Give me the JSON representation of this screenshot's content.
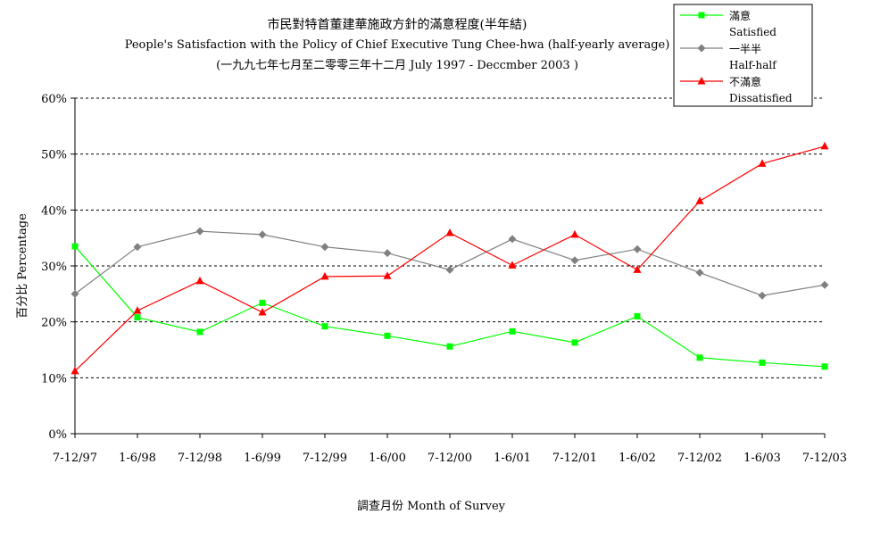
{
  "chart_data": {
    "type": "line",
    "title": "市民對特首董建華施政方針的滿意程度(半年結)",
    "subtitle_en": "People's Satisfaction with the Policy of Chief Executive Tung Chee-hwa (half-yearly average)",
    "subtitle_period": "(一九九七年七月至二零零三年十二月 July 1997 - Deccmber 2003 )",
    "xlabel": "調查月份 Month of Survey",
    "ylabel": "百分比 Percentage",
    "categories": [
      "7-12/97",
      "1-6/98",
      "7-12/98",
      "1-6/99",
      "7-12/99",
      "1-6/00",
      "7-12/00",
      "1-6/01",
      "7-12/01",
      "1-6/02",
      "7-12/02",
      "1-6/03",
      "7-12/03"
    ],
    "ylim": [
      0,
      60
    ],
    "yticks": [
      "0%",
      "10%",
      "20%",
      "30%",
      "40%",
      "50%",
      "60%"
    ],
    "grid": true,
    "legend_position": "top-right",
    "series": [
      {
        "name": "滿意",
        "name_en": "Satisfied",
        "color": "#00ff00",
        "marker": "square",
        "values": [
          33.5,
          20.8,
          18.2,
          23.4,
          19.2,
          17.5,
          15.6,
          18.3,
          16.3,
          21.0,
          13.6,
          12.7,
          12.0
        ]
      },
      {
        "name": "一半半",
        "name_en": "Half-half",
        "color": "#808080",
        "marker": "diamond",
        "values": [
          25.0,
          33.4,
          36.2,
          35.6,
          33.4,
          32.3,
          29.3,
          34.8,
          31.0,
          33.0,
          28.8,
          24.7,
          26.6
        ]
      },
      {
        "name": "不滿意",
        "name_en": "Dissatisfied",
        "color": "#ff0000",
        "marker": "triangle",
        "values": [
          11.2,
          22.0,
          27.3,
          21.7,
          28.1,
          28.2,
          35.9,
          30.1,
          35.6,
          29.3,
          41.6,
          48.3,
          51.4
        ]
      }
    ]
  }
}
